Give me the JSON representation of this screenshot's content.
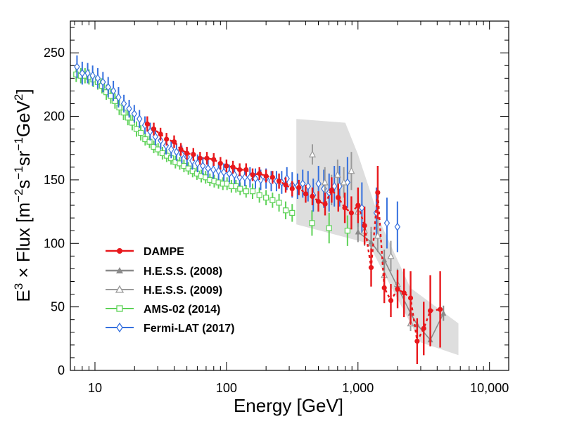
{
  "chart_data": {
    "type": "scatter",
    "title": "",
    "xlabel": "Energy [GeV]",
    "ylabel": {
      "e": "E",
      "e_exp": "3",
      "mid": " × Flux [m",
      "m_exp": "−2",
      "s": "s",
      "s_exp": "−1",
      "sr": "sr",
      "sr_exp": "−1",
      "gev": "GeV",
      "gev_exp": "2",
      "close": "]"
    },
    "xscale": "log",
    "xlim": [
      6.5,
      14000
    ],
    "ylim": [
      0,
      275
    ],
    "xticks": [
      {
        "value": 10,
        "label": "10"
      },
      {
        "value": 100,
        "label": "100"
      },
      {
        "value": 1000,
        "label": "1,000"
      },
      {
        "value": 10000,
        "label": "10,000"
      }
    ],
    "yticks": [
      0,
      50,
      100,
      150,
      200,
      250
    ],
    "legend_position": "bottom-left",
    "band": {
      "upper": [
        [
          340,
          198
        ],
        [
          800,
          195
        ],
        [
          1000,
          170
        ],
        [
          1500,
          115
        ],
        [
          2500,
          65
        ],
        [
          5800,
          37
        ]
      ],
      "lower": [
        [
          5800,
          12
        ],
        [
          3000,
          22
        ],
        [
          1800,
          65
        ],
        [
          1200,
          100
        ],
        [
          340,
          115
        ]
      ],
      "color": "#dedede"
    },
    "series": [
      {
        "name": "DAMPE",
        "color": "#e8181c",
        "marker": "circle-filled",
        "line": true,
        "points": [
          [
            25,
            194,
            6
          ],
          [
            28,
            190,
            5
          ],
          [
            31.5,
            186,
            5
          ],
          [
            35,
            182,
            5
          ],
          [
            40,
            180,
            5
          ],
          [
            45,
            174,
            5
          ],
          [
            50,
            171,
            5
          ],
          [
            56,
            170,
            5
          ],
          [
            63,
            167,
            5
          ],
          [
            71,
            167,
            5
          ],
          [
            80,
            166,
            5
          ],
          [
            90,
            163,
            5
          ],
          [
            100,
            161,
            5
          ],
          [
            112,
            160,
            5
          ],
          [
            126,
            158,
            5
          ],
          [
            141,
            158,
            5
          ],
          [
            158,
            154,
            5
          ],
          [
            178,
            155,
            5
          ],
          [
            200,
            153,
            5
          ],
          [
            224,
            152,
            5
          ],
          [
            251,
            149,
            6
          ],
          [
            282,
            146,
            6
          ],
          [
            316,
            143,
            6
          ],
          [
            355,
            144,
            6
          ],
          [
            400,
            139,
            7
          ],
          [
            450,
            137,
            7
          ],
          [
            500,
            133,
            8
          ],
          [
            562,
            131,
            9
          ],
          [
            631,
            142,
            10
          ],
          [
            708,
            136,
            11
          ],
          [
            794,
            128,
            12
          ],
          [
            891,
            124,
            13
          ],
          [
            1000,
            130,
            14
          ],
          [
            1122,
            114,
            15
          ],
          [
            1259,
            81,
            15
          ],
          [
            1413,
            140,
            21
          ],
          [
            1585,
            65,
            12
          ],
          [
            1778,
            55,
            13
          ],
          [
            2000,
            64,
            15
          ],
          [
            2239,
            61,
            19
          ],
          [
            2512,
            57,
            21
          ],
          [
            2818,
            23,
            18
          ],
          [
            3162,
            33,
            21
          ],
          [
            3548,
            47,
            28
          ],
          [
            4217,
            48,
            30
          ]
        ]
      },
      {
        "name": "H.E.S.S. (2008)",
        "color": "#8a8a8a",
        "marker": "triangle-filled",
        "line": true,
        "points": [
          [
            1000,
            109,
            8
          ],
          [
            1259,
            101,
            8
          ],
          [
            1585,
            87,
            8
          ],
          [
            1995,
            66,
            7
          ],
          [
            2512,
            45,
            6
          ],
          [
            2818,
            36,
            5
          ],
          [
            3548,
            24,
            5
          ],
          [
            4467,
            45,
            6
          ]
        ]
      },
      {
        "name": "H.E.S.S. (2009)",
        "color": "#9a9a9a",
        "marker": "triangle-open",
        "line": false,
        "points": [
          [
            450,
            170,
            8
          ],
          [
            560,
            148,
            12
          ],
          [
            630,
            142,
            12
          ],
          [
            700,
            154,
            12
          ],
          [
            780,
            148,
            12
          ],
          [
            891,
            157,
            15
          ],
          [
            1000,
            125,
            12
          ],
          [
            1122,
            110,
            12
          ],
          [
            1259,
            100,
            13
          ],
          [
            1413,
            106,
            13
          ],
          [
            1585,
            75,
            12
          ],
          [
            1778,
            90,
            12
          ],
          [
            1995,
            68,
            12
          ],
          [
            2512,
            37,
            6
          ]
        ]
      },
      {
        "name": "AMS-02 (2014)",
        "color": "#5ed258",
        "marker": "square-open",
        "line": false,
        "points": [
          [
            7.2,
            233,
            6
          ],
          [
            7.8,
            232,
            6
          ],
          [
            8.4,
            232,
            6
          ],
          [
            9,
            231,
            6
          ],
          [
            9.7,
            229,
            6
          ],
          [
            10.5,
            227,
            6
          ],
          [
            11.3,
            224,
            6
          ],
          [
            12.2,
            219,
            6
          ],
          [
            13.2,
            216,
            6
          ],
          [
            14.2,
            212,
            6
          ],
          [
            15.3,
            207,
            6
          ],
          [
            16.5,
            203,
            6
          ],
          [
            17.8,
            199,
            6
          ],
          [
            19.2,
            195,
            6
          ],
          [
            20.7,
            190,
            6
          ],
          [
            22.3,
            187,
            6
          ],
          [
            24.1,
            182,
            5
          ],
          [
            26,
            180,
            5
          ],
          [
            28,
            176,
            5
          ],
          [
            30.2,
            174,
            5
          ],
          [
            32.6,
            171,
            5
          ],
          [
            35.1,
            169,
            5
          ],
          [
            37.9,
            167,
            5
          ],
          [
            40.9,
            164,
            5
          ],
          [
            44.1,
            163,
            5
          ],
          [
            47.5,
            161,
            5
          ],
          [
            51.3,
            159,
            5
          ],
          [
            55.3,
            157,
            5
          ],
          [
            59.6,
            155,
            5
          ],
          [
            64.3,
            153,
            5
          ],
          [
            69.4,
            152,
            5
          ],
          [
            74.8,
            150,
            5
          ],
          [
            80.7,
            149,
            5
          ],
          [
            87,
            148,
            5
          ],
          [
            93.9,
            147,
            5
          ],
          [
            101,
            147,
            5
          ],
          [
            109,
            145,
            5
          ],
          [
            118,
            145,
            5
          ],
          [
            127,
            143,
            5
          ],
          [
            141,
            141,
            5
          ],
          [
            158,
            141,
            6
          ],
          [
            178,
            138,
            6
          ],
          [
            200,
            136,
            6
          ],
          [
            224,
            134,
            6
          ],
          [
            251,
            132,
            7
          ],
          [
            282,
            126,
            7
          ],
          [
            316,
            124,
            7
          ],
          [
            447,
            116,
            10
          ],
          [
            603,
            112,
            12
          ],
          [
            832,
            110,
            12
          ]
        ]
      },
      {
        "name": "Fermi-LAT (2017)",
        "color": "#3570de",
        "marker": "diamond-open",
        "line": false,
        "points": [
          [
            7.3,
            239,
            9
          ],
          [
            8,
            234,
            9
          ],
          [
            8.8,
            234,
            8
          ],
          [
            9.6,
            232,
            8
          ],
          [
            10.5,
            230,
            8
          ],
          [
            11.5,
            227,
            8
          ],
          [
            12.6,
            223,
            8
          ],
          [
            13.8,
            220,
            8
          ],
          [
            15.1,
            215,
            8
          ],
          [
            16.6,
            210,
            7
          ],
          [
            18.2,
            206,
            7
          ],
          [
            19.9,
            202,
            7
          ],
          [
            21.8,
            198,
            7
          ],
          [
            24,
            193,
            7
          ],
          [
            26.3,
            188,
            7
          ],
          [
            28.8,
            184,
            7
          ],
          [
            31.6,
            181,
            7
          ],
          [
            34.7,
            177,
            7
          ],
          [
            38,
            174,
            7
          ],
          [
            41.7,
            172,
            7
          ],
          [
            45.7,
            170,
            7
          ],
          [
            50.1,
            168,
            7
          ],
          [
            55,
            165,
            7
          ],
          [
            60.3,
            163,
            7
          ],
          [
            66.1,
            161,
            7
          ],
          [
            72.4,
            159,
            7
          ],
          [
            79.4,
            158,
            7
          ],
          [
            87.1,
            157,
            7
          ],
          [
            95.5,
            156,
            7
          ],
          [
            105,
            155,
            7
          ],
          [
            115,
            154,
            7
          ],
          [
            126,
            152,
            7
          ],
          [
            138,
            152,
            7
          ],
          [
            151,
            152,
            8
          ],
          [
            166,
            151,
            8
          ],
          [
            182,
            150,
            8
          ],
          [
            200,
            151,
            8
          ],
          [
            219,
            149,
            8
          ],
          [
            240,
            149,
            8
          ],
          [
            263,
            148,
            9
          ],
          [
            288,
            151,
            9
          ],
          [
            316,
            146,
            10
          ],
          [
            347,
            145,
            10
          ],
          [
            380,
            147,
            11
          ],
          [
            417,
            145,
            12
          ],
          [
            457,
            138,
            13
          ],
          [
            501,
            147,
            14
          ],
          [
            550,
            143,
            15
          ],
          [
            603,
            140,
            15
          ],
          [
            661,
            145,
            16
          ],
          [
            724,
            145,
            16
          ],
          [
            832,
            148,
            20
          ],
          [
            1071,
            128,
            20
          ],
          [
            1380,
            124,
            20
          ],
          [
            1660,
            116,
            20
          ],
          [
            1995,
            113,
            20
          ]
        ]
      }
    ]
  }
}
